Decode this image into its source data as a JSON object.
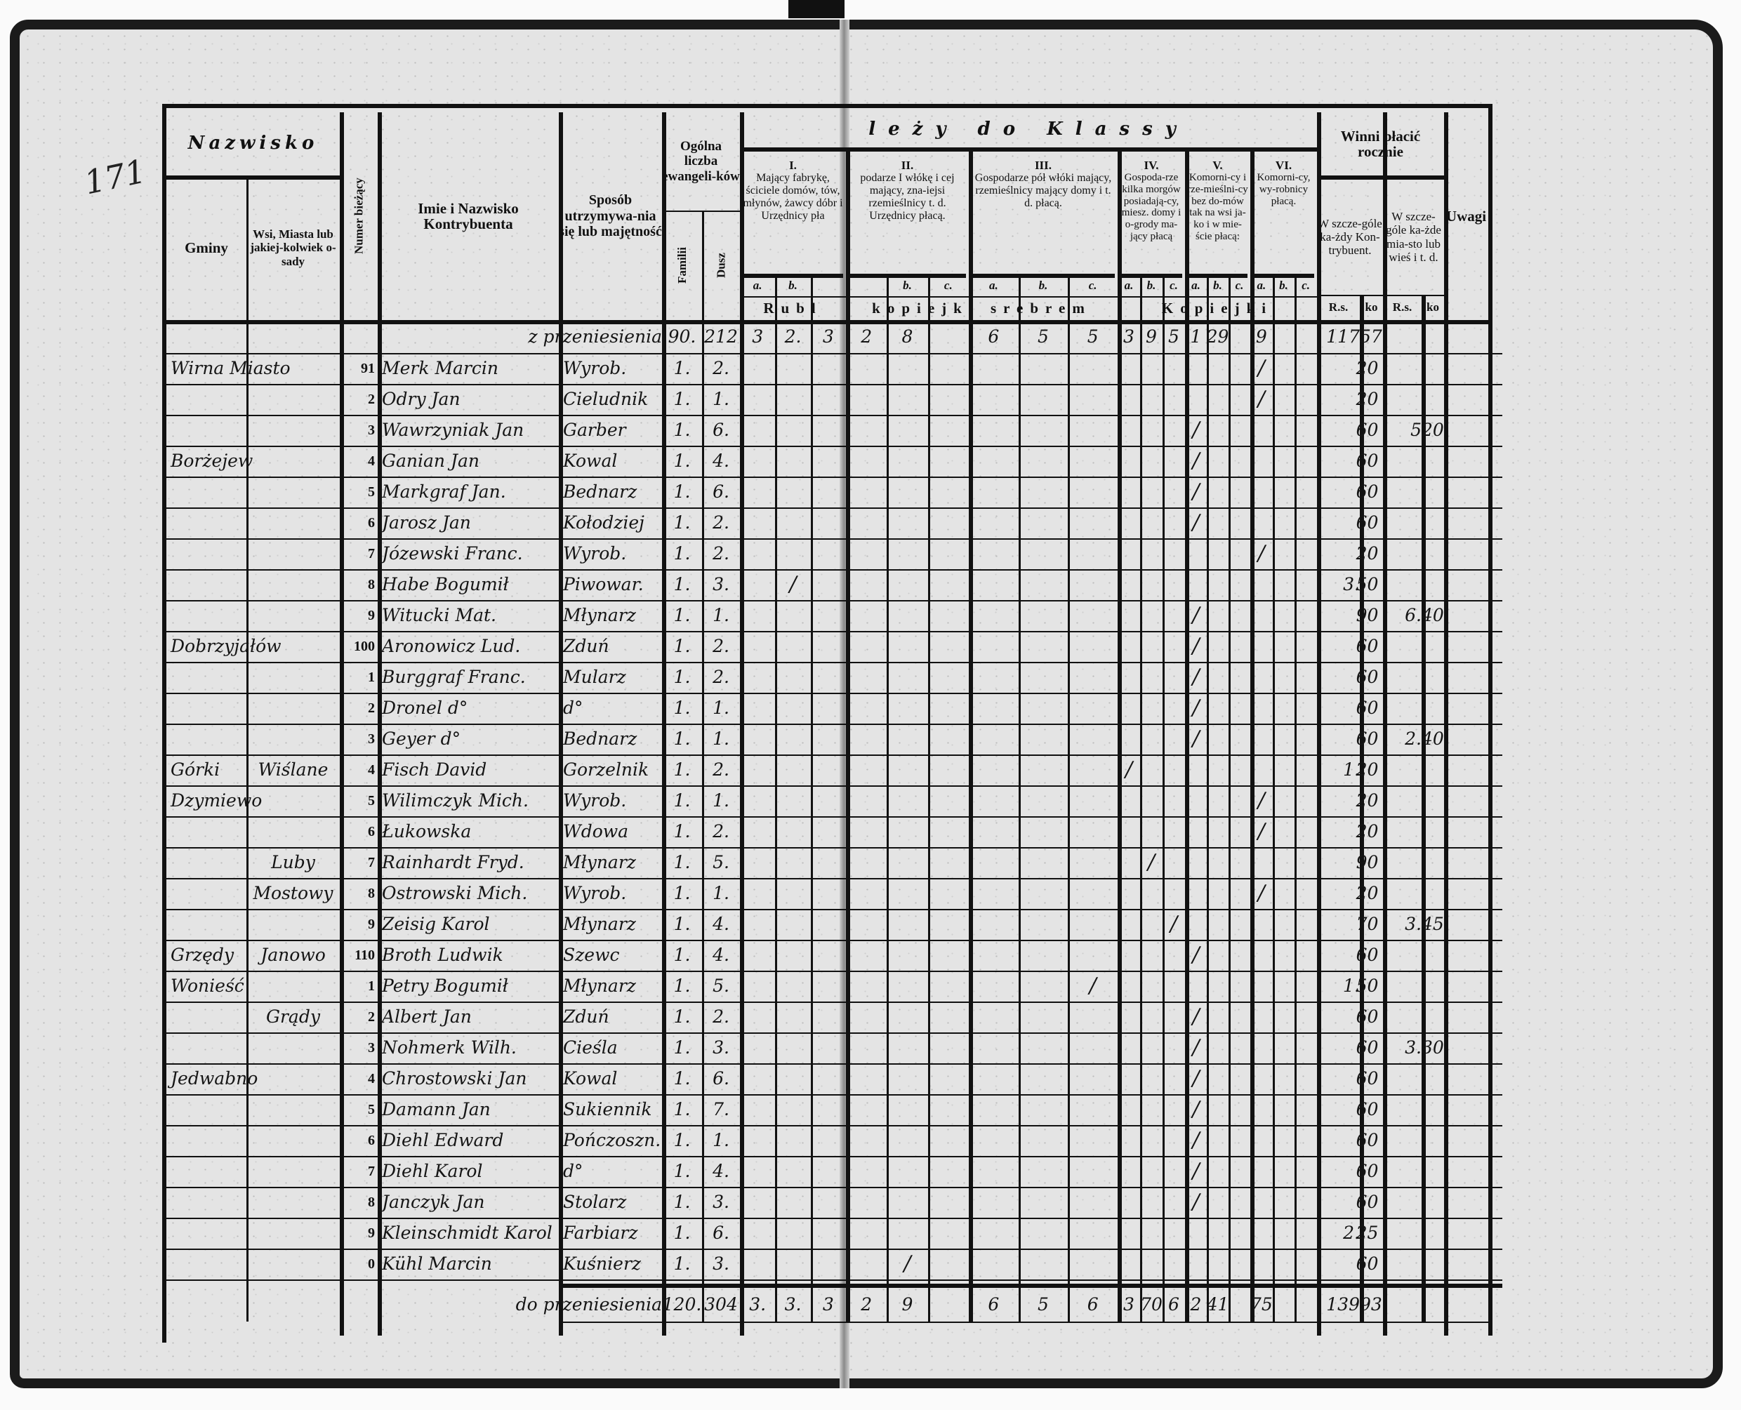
{
  "page_number": "171",
  "header": {
    "nazwisko": "Nazwisko",
    "gminy": "Gminy",
    "wsi": "Wsi, Miasta lub jakiej-kolwiek o-sady",
    "numer": "Numer bieżący",
    "imie": "Imie i Nazwisko Kontrybuenta",
    "sposob": "Sposób utrzymywa-nia się lub majętność",
    "ogolna": "Ogólna liczba ewangeli-ków",
    "familii": "Familii",
    "dusz": "Dusz",
    "klassy": "leży do Klassy",
    "classes": [
      {
        "title": "I.",
        "text": "Mający fabrykę, ściciele domów, tów, młynów, żawcy dóbr i Urzędnicy pła",
        "subs": [
          "a.",
          "b.",
          ""
        ]
      },
      {
        "title": "II.",
        "text": "podarze I włókę i cej mający, zna-iejsi rzemieślnicy t. d. Urzędnicy płacą.",
        "subs": [
          "",
          "b.",
          "c."
        ]
      },
      {
        "title": "III.",
        "text": "Gospodarze pół włóki mający, rzemieślnicy mający domy i t. d. płacą.",
        "subs": [
          "a.",
          "b.",
          "c."
        ]
      },
      {
        "title": "IV.",
        "text": "Gospoda-rze kilka morgów posiadają-cy, miesz. domy i o-grody ma-jący płacą",
        "subs": [
          "a.",
          "b.",
          "c."
        ]
      },
      {
        "title": "V.",
        "text": "Komorni-cy i rze-mieślni-cy bez do-mów tak na wsi ja-ko i w mie-ście płacą:",
        "subs": [
          "a.",
          "b.",
          "c."
        ]
      },
      {
        "title": "VI.",
        "text": "Komorni-cy, wy-robnicy płacą.",
        "subs": [
          "a.",
          "b.",
          "c."
        ]
      }
    ],
    "unit_rubli": "Rubl",
    "unit_kopiejki_srebrem": "kopiejki srebrem",
    "unit_kopiejki": "Kopiejki",
    "winni": "Winni płacić rocznie",
    "winni_kontrybuent": "W szcze-góle ka-żdy Kon-trybuent.",
    "winni_miasto": "W szcze-góle ka-żde mia-sto lub wieś i t. d.",
    "rs": "R.s.",
    "ko": "ko",
    "uwagi": "Uwagi"
  },
  "carried": {
    "label": "z przeniesienia",
    "familii": "90.",
    "dusz": "212",
    "classes": [
      [
        "3",
        "2.",
        "3"
      ],
      [
        "2",
        "8",
        ""
      ],
      [
        "6",
        "5",
        "5"
      ],
      [
        "3",
        "9",
        "5"
      ],
      [
        "1",
        "29",
        ""
      ],
      [
        "9",
        "",
        ""
      ]
    ],
    "rs": "117",
    "ko": "57½"
  },
  "rows": [
    {
      "num": "91",
      "gmina": "Wirna Miasto",
      "wies": "",
      "name": "Merk Marcin",
      "occ": "Wyrob.",
      "fam": "1.",
      "dusz": "2.",
      "mark": [
        5,
        0
      ],
      "rs": "",
      "ko": "20",
      "vrs": "",
      "vko": ""
    },
    {
      "num": "2",
      "gmina": "",
      "wies": "",
      "name": "Odry Jan",
      "occ": "Cieludnik",
      "fam": "1.",
      "dusz": "1.",
      "mark": [
        5,
        0
      ],
      "rs": "",
      "ko": "20",
      "vrs": "",
      "vko": ""
    },
    {
      "num": "3",
      "gmina": "",
      "wies": "",
      "name": "Wawrzyniak Jan",
      "occ": "Garber",
      "fam": "1.",
      "dusz": "6.",
      "mark": [
        4,
        0
      ],
      "rs": "",
      "ko": "60",
      "vrs": "5",
      "vko": "20"
    },
    {
      "num": "4",
      "gmina": "Borżejew",
      "wies": "",
      "name": "Ganian Jan",
      "occ": "Kowal",
      "fam": "1.",
      "dusz": "4.",
      "mark": [
        4,
        0
      ],
      "rs": "",
      "ko": "60",
      "vrs": "",
      "vko": ""
    },
    {
      "num": "5",
      "gmina": "",
      "wies": "",
      "name": "Markgraf Jan.",
      "occ": "Bednarz",
      "fam": "1.",
      "dusz": "6.",
      "mark": [
        4,
        0
      ],
      "rs": "",
      "ko": "60",
      "vrs": "",
      "vko": ""
    },
    {
      "num": "6",
      "gmina": "",
      "wies": "",
      "name": "Jarosz Jan",
      "occ": "Kołodziej",
      "fam": "1.",
      "dusz": "2.",
      "mark": [
        4,
        0
      ],
      "rs": "",
      "ko": "60",
      "vrs": "",
      "vko": ""
    },
    {
      "num": "7",
      "gmina": "",
      "wies": "",
      "name": "Józewski Franc.",
      "occ": "Wyrob.",
      "fam": "1.",
      "dusz": "2.",
      "mark": [
        5,
        0
      ],
      "rs": "",
      "ko": "20",
      "vrs": "",
      "vko": ""
    },
    {
      "num": "8",
      "gmina": "",
      "wies": "",
      "name": "Habe Bogumił",
      "occ": "Piwowar.",
      "fam": "1.",
      "dusz": "3.",
      "mark": [
        0,
        1
      ],
      "rs": "3.",
      "ko": "50",
      "vrs": "",
      "vko": ""
    },
    {
      "num": "9",
      "gmina": "",
      "wies": "",
      "name": "Witucki Mat.",
      "occ": "Młynarz",
      "fam": "1.",
      "dusz": "1.",
      "mark": [
        4,
        0
      ],
      "rs": "",
      "ko": "90",
      "vrs": "6.",
      "vko": "40"
    },
    {
      "num": "100",
      "gmina": "Dobrzyjałów",
      "wies": "",
      "name": "Aronowicz Lud.",
      "occ": "Zduń",
      "fam": "1.",
      "dusz": "2.",
      "mark": [
        4,
        0
      ],
      "rs": "",
      "ko": "60",
      "vrs": "",
      "vko": ""
    },
    {
      "num": "1",
      "gmina": "",
      "wies": "",
      "name": "Burggraf Franc.",
      "occ": "Mularz",
      "fam": "1.",
      "dusz": "2.",
      "mark": [
        4,
        0
      ],
      "rs": "",
      "ko": "60",
      "vrs": "",
      "vko": ""
    },
    {
      "num": "2",
      "gmina": "",
      "wies": "",
      "name": "Dronel d°",
      "occ": "d°",
      "fam": "1.",
      "dusz": "1.",
      "mark": [
        4,
        0
      ],
      "rs": "",
      "ko": "60",
      "vrs": "",
      "vko": ""
    },
    {
      "num": "3",
      "gmina": "",
      "wies": "",
      "name": "Geyer d°",
      "occ": "Bednarz",
      "fam": "1.",
      "dusz": "1.",
      "mark": [
        4,
        0
      ],
      "rs": "",
      "ko": "60",
      "vrs": "2.",
      "vko": "40"
    },
    {
      "num": "4",
      "gmina": "Górki",
      "wies": "Wiślane",
      "name": "Fisch David",
      "occ": "Gorzelnik",
      "fam": "1.",
      "dusz": "2.",
      "mark": [
        3,
        0
      ],
      "rs": "1.",
      "ko": "20",
      "vrs": "",
      "vko": ""
    },
    {
      "num": "5",
      "gmina": "Dzymiewo",
      "wies": "",
      "name": "Wilimczyk Mich.",
      "occ": "Wyrob.",
      "fam": "1.",
      "dusz": "1.",
      "mark": [
        5,
        0
      ],
      "rs": "",
      "ko": "20",
      "vrs": "",
      "vko": ""
    },
    {
      "num": "6",
      "gmina": "",
      "wies": "",
      "name": "Łukowska",
      "occ": "Wdowa",
      "fam": "1.",
      "dusz": "2.",
      "mark": [
        5,
        0
      ],
      "rs": "",
      "ko": "20",
      "vrs": "",
      "vko": ""
    },
    {
      "num": "7",
      "gmina": "",
      "wies": "Luby",
      "name": "Rainhardt Fryd.",
      "occ": "Młynarz",
      "fam": "1.",
      "dusz": "5.",
      "mark": [
        3,
        1
      ],
      "rs": "",
      "ko": "90",
      "vrs": "",
      "vko": ""
    },
    {
      "num": "8",
      "gmina": "",
      "wies": "Mostowy",
      "name": "Ostrowski Mich.",
      "occ": "Wyrob.",
      "fam": "1.",
      "dusz": "1.",
      "mark": [
        5,
        0
      ],
      "rs": "",
      "ko": "20",
      "vrs": "",
      "vko": ""
    },
    {
      "num": "9",
      "gmina": "",
      "wies": "",
      "name": "Zeisig Karol",
      "occ": "Młynarz",
      "fam": "1.",
      "dusz": "4.",
      "mark": [
        3,
        2
      ],
      "rs": "",
      "ko": "70",
      "vrs": "3.",
      "vko": "45"
    },
    {
      "num": "110",
      "gmina": "Grzędy",
      "wies": "Janowo",
      "name": "Broth Ludwik",
      "occ": "Szewc",
      "fam": "1.",
      "dusz": "4.",
      "mark": [
        4,
        0
      ],
      "rs": "",
      "ko": "60",
      "vrs": "",
      "vko": ""
    },
    {
      "num": "1",
      "gmina": "Wonieść",
      "wies": "",
      "name": "Petry Bogumił",
      "occ": "Młynarz",
      "fam": "1.",
      "dusz": "5.",
      "mark": [
        2,
        2
      ],
      "rs": "1.",
      "ko": "50",
      "vrs": "",
      "vko": ""
    },
    {
      "num": "2",
      "gmina": "",
      "wies": "Grądy",
      "name": "Albert Jan",
      "occ": "Zduń",
      "fam": "1.",
      "dusz": "2.",
      "mark": [
        4,
        0
      ],
      "rs": "",
      "ko": "60",
      "vrs": "",
      "vko": ""
    },
    {
      "num": "3",
      "gmina": "",
      "wies": "",
      "name": "Nohmerk Wilh.",
      "occ": "Cieśla",
      "fam": "1.",
      "dusz": "3.",
      "mark": [
        4,
        0
      ],
      "rs": "",
      "ko": "60",
      "vrs": "3.",
      "vko": "30"
    },
    {
      "num": "4",
      "gmina": "Jedwabno",
      "wies": "",
      "name": "Chrostowski Jan",
      "occ": "Kowal",
      "fam": "1.",
      "dusz": "6.",
      "mark": [
        4,
        0
      ],
      "rs": "",
      "ko": "60",
      "vrs": "",
      "vko": ""
    },
    {
      "num": "5",
      "gmina": "",
      "wies": "",
      "name": "Damann Jan",
      "occ": "Sukiennik",
      "fam": "1.",
      "dusz": "7.",
      "mark": [
        4,
        0
      ],
      "rs": "",
      "ko": "60",
      "vrs": "",
      "vko": ""
    },
    {
      "num": "6",
      "gmina": "",
      "wies": "",
      "name": "Diehl Edward",
      "occ": "Pończoszn.",
      "fam": "1.",
      "dusz": "1.",
      "mark": [
        4,
        0
      ],
      "rs": "",
      "ko": "60",
      "vrs": "",
      "vko": ""
    },
    {
      "num": "7",
      "gmina": "",
      "wies": "",
      "name": "Diehl Karol",
      "occ": "d°",
      "fam": "1.",
      "dusz": "4.",
      "mark": [
        4,
        0
      ],
      "rs": "",
      "ko": "60",
      "vrs": "",
      "vko": ""
    },
    {
      "num": "8",
      "gmina": "",
      "wies": "",
      "name": "Janczyk Jan",
      "occ": "Stolarz",
      "fam": "1.",
      "dusz": "3.",
      "mark": [
        4,
        0
      ],
      "rs": "",
      "ko": "60",
      "vrs": "",
      "vko": ""
    },
    {
      "num": "9",
      "gmina": "",
      "wies": "",
      "name": "Kleinschmidt Karol",
      "occ": "Farbiarz",
      "fam": "1.",
      "dusz": "6.",
      "mark": null,
      "rs": "2.",
      "ko": "25",
      "vrs": "",
      "vko": ""
    },
    {
      "num": "0",
      "gmina": "",
      "wies": "",
      "name": "Kühl Marcin",
      "occ": "Kuśnierz",
      "fam": "1.",
      "dusz": "3.",
      "mark": [
        1,
        1
      ],
      "rs": "",
      "ko": "60",
      "vrs": "",
      "vko": ""
    }
  ],
  "mark_text": "/",
  "totals": {
    "label": "do przeniesienia",
    "familii": "120.",
    "dusz": "304",
    "classes": [
      [
        "3.",
        "3.",
        "3"
      ],
      [
        "2",
        "9",
        ""
      ],
      [
        "6",
        "5",
        "6"
      ],
      [
        "3",
        "70",
        "6"
      ],
      [
        "2",
        "41",
        ""
      ],
      [
        "75",
        "",
        ""
      ]
    ],
    "rs": "139",
    "ko": "93½"
  }
}
